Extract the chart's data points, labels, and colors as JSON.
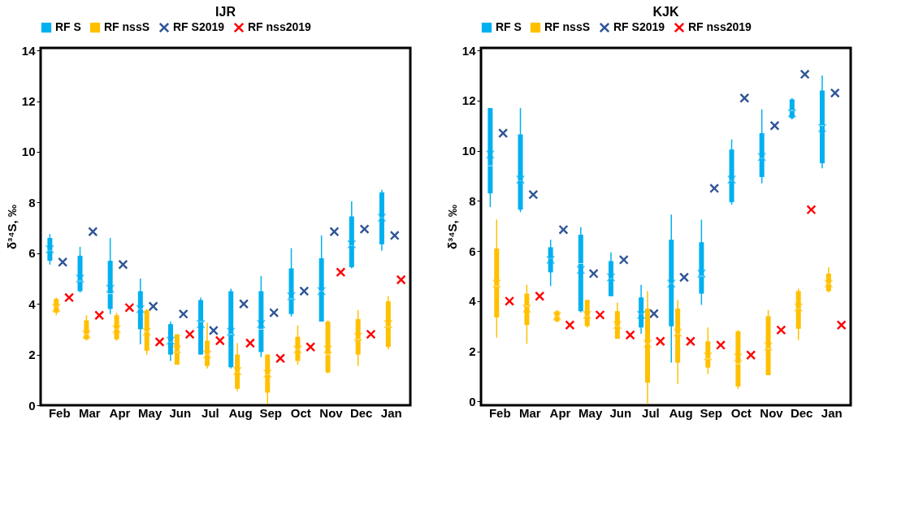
{
  "chart_data": [
    {
      "type": "box",
      "title": "IJR",
      "ylabel": "δ³⁴S, ‰",
      "categories": [
        "Feb",
        "Mar",
        "Apr",
        "May",
        "Jun",
        "Jul",
        "Aug",
        "Sep",
        "Oct",
        "Nov",
        "Dec",
        "Jan"
      ],
      "ylim": [
        0,
        14.1
      ],
      "yticks": [
        0,
        2,
        4,
        6,
        8,
        10,
        12,
        14
      ],
      "grid": false,
      "legend": "top",
      "marker": "cross",
      "series": [
        {
          "name": "RF S",
          "color": "#00b0f0",
          "boxes": [
            {
              "low": 5.55,
              "q1": 5.7,
              "median": 6.1,
              "q3": 6.6,
              "high": 6.75,
              "mean": 6.15
            },
            {
              "low": 4.45,
              "q1": 4.5,
              "median": 4.9,
              "q3": 5.9,
              "high": 6.25,
              "mean": 5.0
            },
            {
              "low": 3.6,
              "q1": 3.8,
              "median": 4.4,
              "q3": 5.7,
              "high": 6.6,
              "mean": 4.6
            },
            {
              "low": 2.4,
              "q1": 3.0,
              "median": 3.8,
              "q3": 4.5,
              "high": 5.0,
              "mean": 3.8
            },
            {
              "low": 1.75,
              "q1": 2.0,
              "median": 2.5,
              "q3": 3.2,
              "high": 3.3,
              "mean": 2.55
            },
            {
              "low": 2.0,
              "q1": 2.0,
              "median": 3.3,
              "q3": 4.15,
              "high": 4.25,
              "mean": 3.2
            },
            {
              "low": 1.45,
              "q1": 1.5,
              "median": 2.8,
              "q3": 4.5,
              "high": 4.6,
              "mean": 2.9
            },
            {
              "low": 1.9,
              "q1": 2.1,
              "median": 3.0,
              "q3": 4.5,
              "high": 5.1,
              "mean": 3.2
            },
            {
              "low": 3.5,
              "q1": 3.6,
              "median": 4.2,
              "q3": 5.4,
              "high": 6.2,
              "mean": 4.3
            },
            {
              "low": 3.3,
              "q1": 3.3,
              "median": 4.5,
              "q3": 5.8,
              "high": 6.7,
              "mean": 4.5
            },
            {
              "low": 5.4,
              "q1": 5.45,
              "median": 6.3,
              "q3": 7.45,
              "high": 8.05,
              "mean": 6.35
            },
            {
              "low": 6.1,
              "q1": 6.35,
              "median": 7.4,
              "q3": 8.4,
              "high": 8.5,
              "mean": 7.4
            }
          ]
        },
        {
          "name": "RF nssS",
          "color": "#ffc000",
          "boxes": [
            {
              "low": 3.55,
              "q1": 3.65,
              "median": 3.9,
              "q3": 4.2,
              "high": 4.25,
              "mean": 3.85
            },
            {
              "low": 2.55,
              "q1": 2.6,
              "median": 2.8,
              "q3": 3.35,
              "high": 3.55,
              "mean": 2.8
            },
            {
              "low": 2.55,
              "q1": 2.6,
              "median": 3.0,
              "q3": 3.55,
              "high": 3.65,
              "mean": 3.0
            },
            {
              "low": 2.0,
              "q1": 2.15,
              "median": 2.9,
              "q3": 3.75,
              "high": 3.8,
              "mean": 2.9
            },
            {
              "low": 1.6,
              "q1": 1.6,
              "median": 2.1,
              "q3": 2.8,
              "high": 2.8,
              "mean": 2.2
            },
            {
              "low": 1.45,
              "q1": 1.55,
              "median": 2.0,
              "q3": 2.55,
              "high": 3.25,
              "mean": 2.0
            },
            {
              "low": 0.55,
              "q1": 0.65,
              "median": 1.3,
              "q3": 2.0,
              "high": 2.45,
              "mean": 1.35
            },
            {
              "low": 0.05,
              "q1": 0.5,
              "median": 1.2,
              "q3": 2.0,
              "high": 2.0,
              "mean": 1.25
            },
            {
              "low": 1.6,
              "q1": 1.75,
              "median": 2.2,
              "q3": 2.7,
              "high": 3.15,
              "mean": 2.2
            },
            {
              "low": 1.25,
              "q1": 1.3,
              "median": 2.0,
              "q3": 3.3,
              "high": 3.35,
              "mean": 2.2
            },
            {
              "low": 1.55,
              "q1": 2.0,
              "median": 2.6,
              "q3": 3.4,
              "high": 3.75,
              "mean": 2.7
            },
            {
              "low": 2.2,
              "q1": 2.3,
              "median": 3.1,
              "q3": 4.1,
              "high": 4.3,
              "mean": 3.2
            }
          ]
        },
        {
          "name": "RF S2019",
          "type": "scatter",
          "color": "#2f5597",
          "values": [
            5.65,
            6.85,
            5.55,
            3.9,
            3.6,
            2.95,
            4.0,
            3.65,
            4.5,
            6.85,
            6.95,
            6.7
          ]
        },
        {
          "name": "RF nss2019",
          "type": "scatter",
          "color": "#ff0000",
          "values": [
            4.25,
            3.55,
            3.85,
            2.5,
            2.8,
            2.55,
            2.45,
            1.85,
            2.3,
            5.25,
            2.8,
            4.95
          ]
        }
      ]
    },
    {
      "type": "box",
      "title": "KJK",
      "ylabel": "δ³⁴S, ‰",
      "categories": [
        "Feb",
        "Mar",
        "Apr",
        "May",
        "Jun",
        "Jul",
        "Aug",
        "Sep",
        "Oct",
        "Nov",
        "Dec",
        "Jan"
      ],
      "ylim": [
        -0.15,
        14.1
      ],
      "yticks": [
        0,
        2,
        4,
        6,
        8,
        10,
        12,
        14
      ],
      "grid": false,
      "legend": "top",
      "marker": "cross",
      "series": [
        {
          "name": "RF S",
          "color": "#00b0f0",
          "boxes": [
            {
              "low": 7.75,
              "q1": 8.3,
              "median": 9.4,
              "q3": 11.7,
              "high": 11.7,
              "mean": 9.85
            },
            {
              "low": 7.55,
              "q1": 7.65,
              "median": 8.8,
              "q3": 10.65,
              "high": 11.7,
              "mean": 8.85
            },
            {
              "low": 4.6,
              "q1": 5.15,
              "median": 5.7,
              "q3": 6.15,
              "high": 6.45,
              "mean": 5.65
            },
            {
              "low": 3.55,
              "q1": 3.6,
              "median": 5.5,
              "q3": 6.65,
              "high": 6.95,
              "mean": 5.25
            },
            {
              "low": 4.2,
              "q1": 4.2,
              "median": 4.9,
              "q3": 5.6,
              "high": 5.95,
              "mean": 4.95
            },
            {
              "low": 2.7,
              "q1": 2.95,
              "median": 3.5,
              "q3": 4.15,
              "high": 4.65,
              "mean": 3.45
            },
            {
              "low": 1.55,
              "q1": 3.0,
              "median": 4.7,
              "q3": 6.45,
              "high": 7.45,
              "mean": 4.7
            },
            {
              "low": 3.85,
              "q1": 4.3,
              "median": 5.0,
              "q3": 6.35,
              "high": 7.25,
              "mean": 5.1
            },
            {
              "low": 7.85,
              "q1": 7.95,
              "median": 8.8,
              "q3": 10.05,
              "high": 10.45,
              "mean": 8.85
            },
            {
              "low": 8.7,
              "q1": 8.95,
              "median": 9.7,
              "q3": 10.7,
              "high": 11.65,
              "mean": 9.75
            },
            {
              "low": 11.25,
              "q1": 11.3,
              "median": 11.6,
              "q3": 12.05,
              "high": 12.1,
              "mean": 11.5
            },
            {
              "low": 9.3,
              "q1": 9.5,
              "median": 11.0,
              "q3": 12.4,
              "high": 13.0,
              "mean": 10.9
            }
          ]
        },
        {
          "name": "RF nssS",
          "color": "#ffc000",
          "boxes": [
            {
              "low": 2.55,
              "q1": 3.35,
              "median": 4.6,
              "q3": 6.1,
              "high": 7.25,
              "mean": 4.7
            },
            {
              "low": 2.3,
              "q1": 3.05,
              "median": 3.8,
              "q3": 4.3,
              "high": 4.65,
              "mean": 3.7
            },
            {
              "low": 3.15,
              "q1": 3.2,
              "median": 3.4,
              "q3": 3.6,
              "high": 3.65,
              "mean": 3.4
            },
            {
              "low": 2.95,
              "q1": 3.0,
              "median": 3.4,
              "q3": 4.05,
              "high": 4.05,
              "mean": 3.45
            },
            {
              "low": 2.5,
              "q1": 2.5,
              "median": 3.0,
              "q3": 3.6,
              "high": 3.95,
              "mean": 3.05
            },
            {
              "low": -0.1,
              "q1": 0.75,
              "median": 2.3,
              "q3": 3.7,
              "high": 4.4,
              "mean": 2.3
            },
            {
              "low": 0.7,
              "q1": 1.55,
              "median": 2.7,
              "q3": 3.7,
              "high": 4.05,
              "mean": 2.75
            },
            {
              "low": 1.1,
              "q1": 1.35,
              "median": 1.7,
              "q3": 2.4,
              "high": 2.95,
              "mean": 1.8
            },
            {
              "low": 0.5,
              "q1": 0.6,
              "median": 1.5,
              "q3": 2.8,
              "high": 2.85,
              "mean": 1.75
            },
            {
              "low": 1.05,
              "q1": 1.05,
              "median": 2.1,
              "q3": 3.4,
              "high": 3.65,
              "mean": 2.2
            },
            {
              "low": 2.45,
              "q1": 2.9,
              "median": 3.7,
              "q3": 4.4,
              "high": 4.5,
              "mean": 3.75
            },
            {
              "low": 4.35,
              "q1": 4.4,
              "median": 4.7,
              "q3": 5.1,
              "high": 5.35,
              "mean": 4.7
            }
          ]
        },
        {
          "name": "RF S2019",
          "type": "scatter",
          "color": "#2f5597",
          "values": [
            10.7,
            8.25,
            6.85,
            5.1,
            5.65,
            3.5,
            4.95,
            8.5,
            12.1,
            11.0,
            13.05,
            12.3
          ]
        },
        {
          "name": "RF nss2019",
          "type": "scatter",
          "color": "#ff0000",
          "values": [
            4.0,
            4.2,
            3.05,
            3.45,
            2.65,
            2.4,
            2.4,
            2.25,
            1.85,
            2.85,
            7.65,
            3.05
          ]
        }
      ]
    }
  ]
}
